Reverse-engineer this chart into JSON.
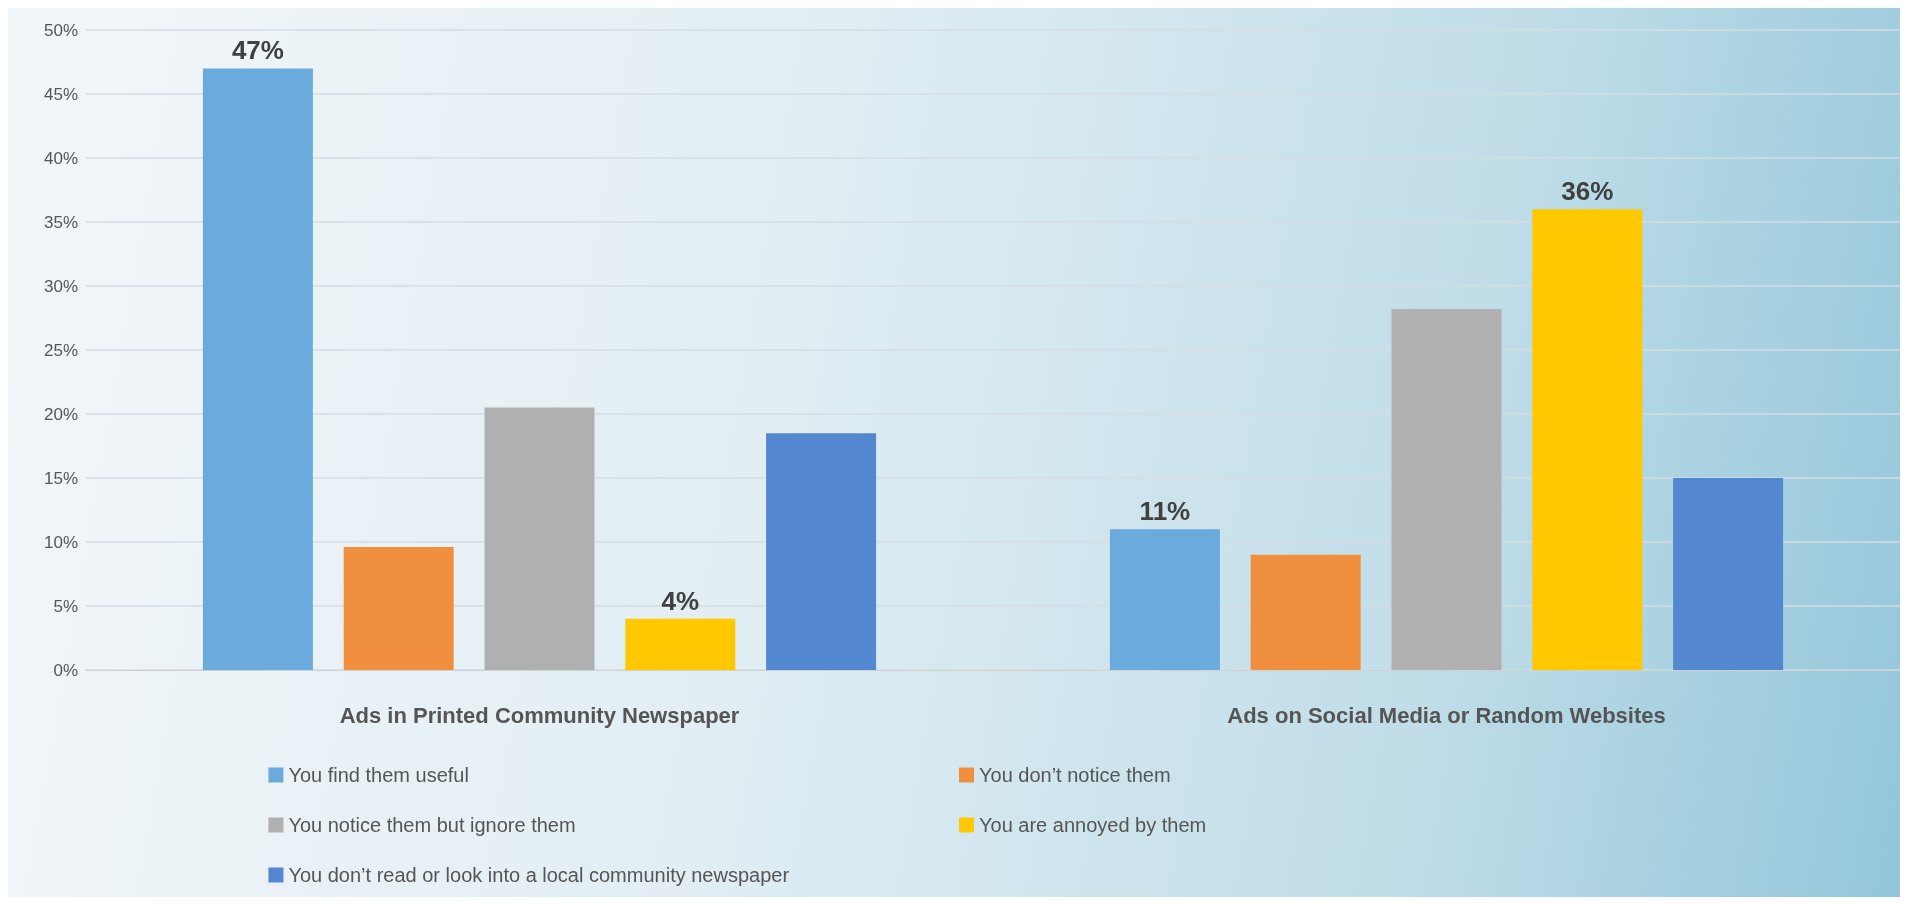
{
  "chart_data": {
    "type": "bar",
    "categories": [
      "Ads in Printed Community Newspaper",
      "Ads on Social Media or Random Websites"
    ],
    "series": [
      {
        "name": "You find them useful",
        "color": "#6aaadc",
        "values": [
          47,
          11
        ],
        "value_labels": [
          "47%",
          "11%"
        ]
      },
      {
        "name": "You don’t notice them",
        "color": "#f0903f",
        "values": [
          9.6,
          9.0
        ],
        "value_labels": [
          null,
          null
        ]
      },
      {
        "name": "You notice them but ignore them",
        "color": "#b0b0b0",
        "values": [
          20.5,
          28.2
        ],
        "value_labels": [
          null,
          null
        ]
      },
      {
        "name": "You are annoyed by them",
        "color": "#ffc800",
        "values": [
          4,
          36
        ],
        "value_labels": [
          "4%",
          "36%"
        ]
      },
      {
        "name": "You don’t read or look into a local community newspaper",
        "color": "#5387cf",
        "values": [
          18.5,
          15.0
        ],
        "value_labels": [
          null,
          null
        ]
      }
    ],
    "ylim": [
      0,
      50
    ],
    "yticks": [
      {
        "value": 0,
        "label": "0%"
      },
      {
        "value": 5,
        "label": "5%"
      },
      {
        "value": 10,
        "label": "10%"
      },
      {
        "value": 15,
        "label": "15%"
      },
      {
        "value": 20,
        "label": "20%"
      },
      {
        "value": 25,
        "label": "25%"
      },
      {
        "value": 30,
        "label": "30%"
      },
      {
        "value": 35,
        "label": "35%"
      },
      {
        "value": 40,
        "label": "40%"
      },
      {
        "value": 45,
        "label": "45%"
      },
      {
        "value": 50,
        "label": "50%"
      }
    ],
    "grid": "y",
    "legend": "bottom"
  }
}
